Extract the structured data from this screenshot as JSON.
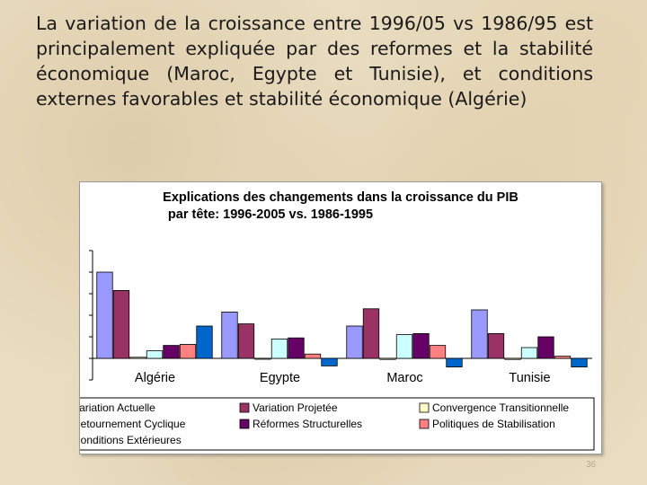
{
  "slide": {
    "text": "La variation de la croissance entre 1996/05 vs 1986/95 est principalement expliquée par des reformes et la stabilité économique (Maroc, Egypte et Tunisie), et conditions externes favorables et stabilité économique (Algérie)",
    "page_number": "36"
  },
  "chart_data": {
    "type": "bar",
    "title": "Explications des changements dans la croissance du PIB par tête: 1996-2005 vs. 1986-1995",
    "title_lines": [
      "Explications des changements dans la croissance du PIB",
      "par tête: 1996-2005 vs. 1986-1995"
    ],
    "categories": [
      "Algérie",
      "Egypte",
      "Maroc",
      "Tunisie"
    ],
    "ylim": [
      -1,
      5
    ],
    "yticks": [
      -1,
      0,
      1,
      2,
      3,
      4,
      5
    ],
    "grid": false,
    "legend_position": "bottom",
    "series": [
      {
        "name": "Variation Actuelle",
        "color": "#9999ff",
        "values": [
          4.0,
          2.15,
          1.5,
          2.25
        ]
      },
      {
        "name": "Variation Projetée",
        "color": "#993366",
        "values": [
          3.15,
          1.6,
          2.3,
          1.15
        ]
      },
      {
        "name": "Convergence Transitionnelle",
        "color": "#ffffcc",
        "values": [
          0.05,
          0.0,
          -0.05,
          -0.05
        ]
      },
      {
        "name": "Retournement Cyclique",
        "color": "#ccffff",
        "values": [
          0.35,
          0.9,
          1.1,
          0.5
        ]
      },
      {
        "name": "Réformes Structurelles",
        "color": "#660066",
        "values": [
          0.6,
          0.95,
          1.15,
          1.0
        ]
      },
      {
        "name": "Politiques de Stabilisation",
        "color": "#ff8080",
        "values": [
          0.65,
          0.2,
          0.6,
          0.1
        ]
      },
      {
        "name": "Conditions Extérieures",
        "color": "#0066cc",
        "values": [
          1.5,
          -0.35,
          -0.4,
          -0.4
        ]
      }
    ]
  }
}
